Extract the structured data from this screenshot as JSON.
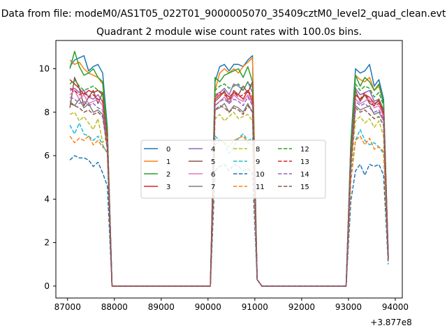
{
  "chart_data": {
    "type": "line",
    "suptitle": "Data from file: modeM0/AS1T05_022T01_9000005070_35409cztM0_level2_quad_clean.evt",
    "title": "Quadrant 2 module wise count rates with 100.0s bins.",
    "xlabel": "",
    "ylabel": "",
    "x_offset_label": "+3.877e8",
    "xlim": [
      86750,
      94150
    ],
    "ylim": [
      -0.55,
      11.3
    ],
    "xticks": [
      87000,
      88000,
      89000,
      90000,
      91000,
      92000,
      93000,
      94000
    ],
    "yticks": [
      0,
      2,
      4,
      6,
      8,
      10
    ],
    "legend": {
      "placement": "center",
      "columns": 4
    },
    "segments": [
      {
        "start": 87050,
        "n": 11
      },
      {
        "start": 90050,
        "n": 11
      },
      {
        "start": 93050,
        "n": 9
      }
    ],
    "x_zero": [
      87050,
      87150,
      87250,
      87350,
      87450,
      87550,
      87650,
      87750,
      87850,
      87950,
      88050,
      88150,
      88250,
      88350,
      88450,
      88550,
      88650,
      88750,
      88850,
      88950,
      89050,
      89150,
      89250,
      89350,
      89450,
      89550,
      89650,
      89750,
      89850,
      89950,
      90050,
      90150,
      90250,
      90350,
      90450,
      90550,
      90650,
      90750,
      90850,
      90950,
      91050,
      91150,
      91250,
      91350,
      91450,
      91550,
      91650,
      91750,
      91850,
      91950,
      92050,
      92150,
      92250,
      92350,
      92450,
      92550,
      92650,
      92750,
      92850,
      92950,
      93050,
      93150,
      93250,
      93350,
      93450,
      93550,
      93650,
      93750,
      93850
    ],
    "series": [
      {
        "name": "0",
        "color": "#1f77b4",
        "dashed": false,
        "values": [
          [
            10.1,
            10.4,
            10.5,
            10.6,
            9.9,
            10.1,
            10.2,
            9.8,
            7.3,
            0.0,
            0.0
          ],
          [
            0.0,
            9.4,
            10.1,
            10.2,
            9.9,
            10.2,
            10.2,
            10.1,
            10.4,
            10.6,
            0.3
          ],
          [
            6.6,
            10.0,
            9.8,
            9.9,
            10.2,
            9.2,
            9.5,
            8.6,
            1.4
          ]
        ]
      },
      {
        "name": "1",
        "color": "#ff7f0e",
        "dashed": false,
        "values": [
          [
            10.4,
            10.2,
            10.3,
            10.0,
            9.8,
            9.7,
            9.6,
            9.3,
            7.1,
            0.0,
            0.0
          ],
          [
            0.0,
            9.0,
            9.8,
            10.0,
            9.8,
            10.0,
            9.8,
            10.1,
            10.3,
            10.5,
            0.3
          ],
          [
            6.4,
            9.7,
            9.5,
            9.4,
            9.6,
            9.0,
            9.2,
            8.4,
            1.4
          ]
        ]
      },
      {
        "name": "2",
        "color": "#2ca02c",
        "dashed": false,
        "values": [
          [
            10.0,
            10.8,
            10.1,
            9.7,
            9.8,
            10.0,
            9.6,
            9.4,
            7.2,
            0.0,
            0.0
          ],
          [
            0.0,
            9.6,
            9.4,
            9.7,
            9.8,
            9.9,
            10.0,
            9.6,
            10.1,
            9.4,
            0.3
          ],
          [
            6.5,
            9.7,
            9.2,
            9.6,
            9.4,
            9.0,
            9.3,
            8.4,
            1.4
          ]
        ]
      },
      {
        "name": "3",
        "color": "#d62728",
        "dashed": false,
        "values": [
          [
            9.5,
            9.3,
            9.1,
            8.8,
            9.0,
            8.9,
            9.0,
            8.8,
            6.7,
            0.0,
            0.0
          ],
          [
            0.0,
            8.6,
            8.8,
            8.9,
            8.7,
            8.9,
            8.8,
            8.6,
            9.0,
            8.5,
            0.3
          ],
          [
            5.9,
            8.8,
            8.6,
            8.8,
            8.7,
            8.4,
            8.5,
            7.9,
            1.3
          ]
        ]
      },
      {
        "name": "4",
        "color": "#9467bd",
        "dashed": false,
        "values": [
          [
            9.0,
            9.1,
            8.9,
            9.0,
            8.7,
            8.6,
            8.8,
            8.5,
            6.8,
            0.0,
            0.0
          ],
          [
            0.0,
            8.8,
            8.9,
            9.1,
            8.8,
            9.3,
            9.2,
            9.0,
            9.4,
            8.9,
            0.3
          ],
          [
            6.0,
            9.1,
            8.8,
            8.9,
            9.0,
            8.5,
            8.6,
            8.0,
            1.3
          ]
        ]
      },
      {
        "name": "5",
        "color": "#8c564b",
        "dashed": false,
        "values": [
          [
            8.2,
            9.6,
            9.1,
            8.3,
            8.7,
            9.0,
            8.4,
            8.9,
            6.7,
            0.0,
            0.0
          ],
          [
            0.0,
            8.5,
            8.7,
            9.0,
            8.4,
            9.0,
            8.8,
            9.2,
            8.9,
            9.4,
            0.3
          ],
          [
            5.8,
            9.0,
            8.5,
            8.8,
            8.4,
            8.3,
            8.6,
            8.1,
            1.3
          ]
        ]
      },
      {
        "name": "6",
        "color": "#e377c2",
        "dashed": false,
        "values": [
          [
            8.8,
            9.0,
            8.6,
            8.8,
            8.4,
            8.5,
            8.6,
            8.3,
            6.5,
            0.0,
            0.0
          ],
          [
            0.0,
            8.3,
            8.5,
            8.7,
            8.4,
            8.8,
            8.6,
            8.5,
            8.8,
            8.4,
            0.3
          ],
          [
            5.7,
            8.6,
            8.4,
            8.5,
            8.7,
            8.2,
            8.3,
            7.8,
            1.3
          ]
        ]
      },
      {
        "name": "7",
        "color": "#7f7f7f",
        "dashed": false,
        "values": [
          [
            8.5,
            8.3,
            8.6,
            8.2,
            8.4,
            8.0,
            8.1,
            7.9,
            6.3,
            0.0,
            0.0
          ],
          [
            0.0,
            8.1,
            8.2,
            8.4,
            8.0,
            8.3,
            8.2,
            8.0,
            8.4,
            8.0,
            0.3
          ],
          [
            5.5,
            8.3,
            8.1,
            8.2,
            8.3,
            7.9,
            8.0,
            7.6,
            1.3
          ]
        ]
      },
      {
        "name": "8",
        "color": "#bcbd22",
        "dashed": true,
        "values": [
          [
            7.9,
            8.0,
            7.6,
            7.8,
            7.5,
            7.2,
            7.7,
            6.6,
            6.9,
            0.0,
            0.0
          ],
          [
            0.0,
            7.7,
            7.9,
            7.6,
            7.8,
            8.0,
            7.7,
            7.8,
            7.9,
            7.6,
            0.3
          ],
          [
            5.3,
            7.6,
            7.8,
            7.5,
            7.7,
            7.3,
            7.6,
            6.9,
            1.2
          ]
        ]
      },
      {
        "name": "9",
        "color": "#17becf",
        "dashed": true,
        "values": [
          [
            7.4,
            7.0,
            7.5,
            7.0,
            6.9,
            6.7,
            6.9,
            6.5,
            6.1,
            0.0,
            0.0
          ],
          [
            0.0,
            6.9,
            6.7,
            6.6,
            6.1,
            6.4,
            6.8,
            7.0,
            6.7,
            6.8,
            0.3
          ],
          [
            5.1,
            6.7,
            7.2,
            6.7,
            6.5,
            6.6,
            6.4,
            6.1,
            1.2
          ]
        ]
      },
      {
        "name": "10",
        "color": "#1f77b4",
        "dashed": true,
        "values": [
          [
            5.8,
            6.0,
            5.9,
            5.9,
            5.8,
            5.5,
            5.7,
            5.2,
            4.6,
            0.0,
            0.0
          ],
          [
            0.0,
            5.3,
            5.5,
            5.6,
            5.3,
            5.6,
            5.5,
            5.3,
            5.4,
            5.2,
            0.3
          ],
          [
            3.9,
            5.3,
            5.6,
            5.1,
            5.6,
            5.5,
            5.6,
            5.1,
            1.0
          ]
        ]
      },
      {
        "name": "11",
        "color": "#ff7f0e",
        "dashed": true,
        "values": [
          [
            6.9,
            6.6,
            6.8,
            6.7,
            6.9,
            6.5,
            6.7,
            6.4,
            6.2,
            0.0,
            0.0
          ],
          [
            0.0,
            6.5,
            6.7,
            6.6,
            6.4,
            6.7,
            6.8,
            6.9,
            6.6,
            6.5,
            0.3
          ],
          [
            4.8,
            6.7,
            6.9,
            6.5,
            6.8,
            6.3,
            6.4,
            6.2,
            1.2
          ]
        ]
      },
      {
        "name": "12",
        "color": "#2ca02c",
        "dashed": true,
        "values": [
          [
            9.3,
            9.5,
            9.2,
            9.0,
            9.1,
            9.2,
            9.0,
            8.9,
            7.0,
            0.0,
            0.0
          ],
          [
            0.0,
            9.0,
            9.2,
            9.3,
            9.1,
            9.2,
            9.3,
            9.0,
            9.4,
            9.1,
            0.3
          ],
          [
            6.2,
            9.3,
            9.0,
            9.2,
            9.1,
            8.7,
            8.9,
            8.3,
            1.4
          ]
        ]
      },
      {
        "name": "13",
        "color": "#d62728",
        "dashed": true,
        "values": [
          [
            9.1,
            9.0,
            8.8,
            8.9,
            8.7,
            8.8,
            8.6,
            8.5,
            6.8,
            0.0,
            0.0
          ],
          [
            0.0,
            8.7,
            8.9,
            8.8,
            8.6,
            8.9,
            8.7,
            8.8,
            9.0,
            8.7,
            0.3
          ],
          [
            6.0,
            8.8,
            8.6,
            8.9,
            8.5,
            8.3,
            8.4,
            8.0,
            1.3
          ]
        ]
      },
      {
        "name": "14",
        "color": "#9467bd",
        "dashed": true,
        "values": [
          [
            8.7,
            8.6,
            8.4,
            8.5,
            8.3,
            8.4,
            8.2,
            8.1,
            6.5,
            0.0,
            0.0
          ],
          [
            0.0,
            8.3,
            8.5,
            8.6,
            8.4,
            8.6,
            8.5,
            8.3,
            8.7,
            8.3,
            0.3
          ],
          [
            5.7,
            8.5,
            8.3,
            8.4,
            8.2,
            8.0,
            8.1,
            7.7,
            1.3
          ]
        ]
      },
      {
        "name": "15",
        "color": "#8c564b",
        "dashed": true,
        "values": [
          [
            8.4,
            8.3,
            8.2,
            8.0,
            8.1,
            7.9,
            8.0,
            7.8,
            6.3,
            0.0,
            0.0
          ],
          [
            0.0,
            8.1,
            8.3,
            8.2,
            8.0,
            8.2,
            8.1,
            7.9,
            8.3,
            8.0,
            0.3
          ],
          [
            5.5,
            8.2,
            8.0,
            8.1,
            7.9,
            7.7,
            7.8,
            7.4,
            1.2
          ]
        ]
      }
    ]
  }
}
